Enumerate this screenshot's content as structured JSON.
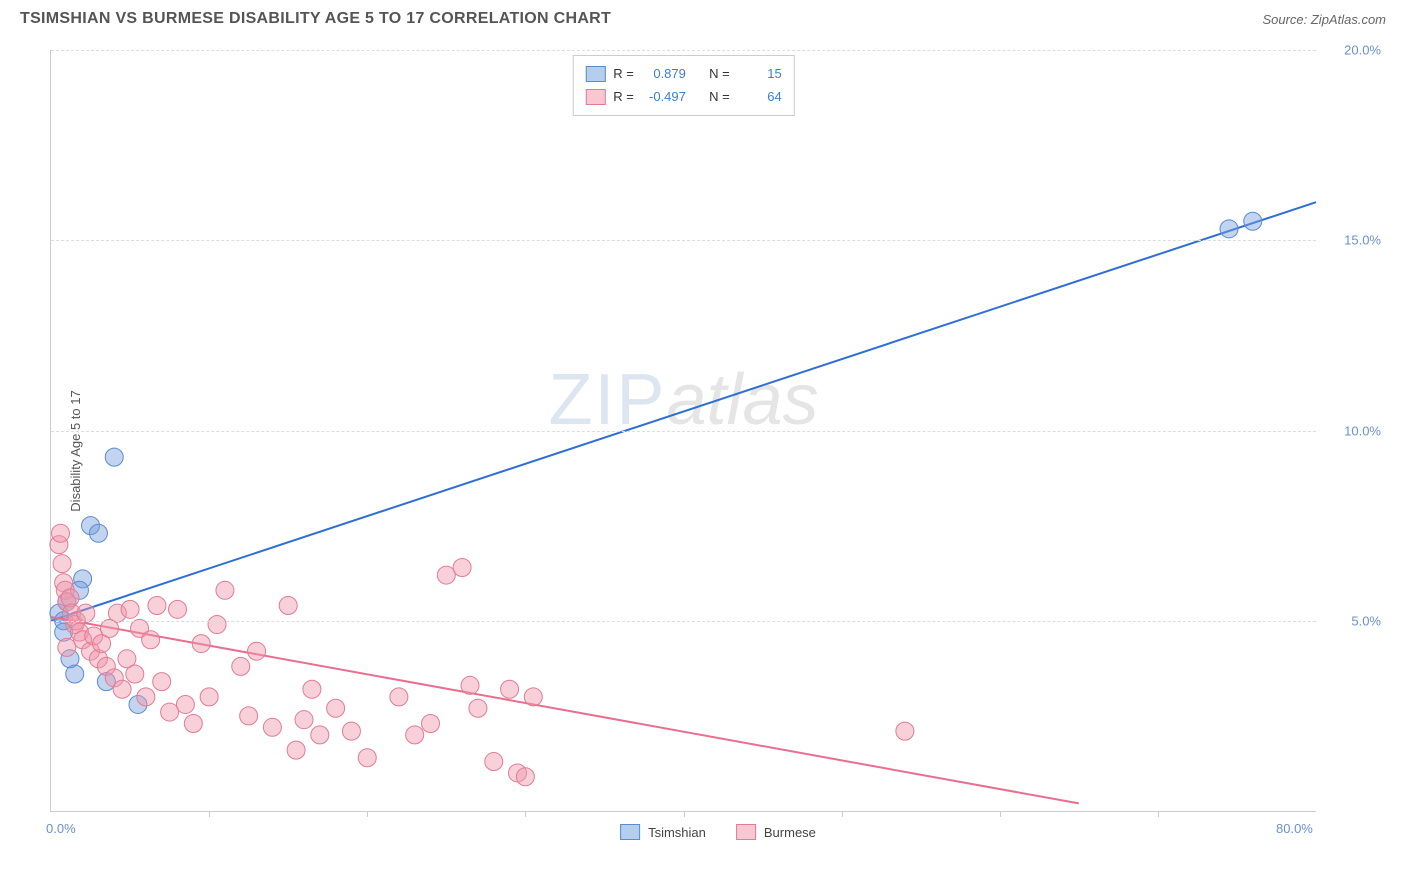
{
  "title": "TSIMSHIAN VS BURMESE DISABILITY AGE 5 TO 17 CORRELATION CHART",
  "source": "Source: ZipAtlas.com",
  "ylabel": "Disability Age 5 to 17",
  "watermark": {
    "part1": "ZIP",
    "part2": "atlas"
  },
  "chart": {
    "type": "scatter",
    "xlim": [
      0,
      80
    ],
    "ylim": [
      0,
      20
    ],
    "x_ticks": [
      0,
      10,
      20,
      30,
      40,
      50,
      60,
      70,
      80
    ],
    "x_tick_labels": {
      "0": "0.0%",
      "80": "80.0%"
    },
    "y_ticks": [
      5,
      10,
      15,
      20
    ],
    "y_tick_labels": [
      "5.0%",
      "10.0%",
      "15.0%",
      "20.0%"
    ],
    "grid_color": "#dddddd",
    "axis_color": "#cccccc",
    "tick_label_color": "#6b8fd4",
    "background_color": "#ffffff"
  },
  "series": [
    {
      "name": "Tsimshian",
      "marker_fill": "rgba(120,160,220,0.45)",
      "marker_stroke": "#5a8cd0",
      "line_color": "#2e6fd6",
      "line_width": 2,
      "marker_radius": 9,
      "R_label": "R =",
      "R": "0.879",
      "N_label": "N =",
      "N": "15",
      "swatch_fill": "rgba(150,185,230,0.7)",
      "swatch_border": "#5a8cd0",
      "trend": {
        "x1": 0,
        "y1": 5.0,
        "x2": 80,
        "y2": 16.0
      },
      "points": [
        [
          0.5,
          5.2
        ],
        [
          0.8,
          5.0
        ],
        [
          1.0,
          5.5
        ],
        [
          1.5,
          3.6
        ],
        [
          2.0,
          6.1
        ],
        [
          2.5,
          7.5
        ],
        [
          3.0,
          7.3
        ],
        [
          3.5,
          3.4
        ],
        [
          4.0,
          9.3
        ],
        [
          5.5,
          2.8
        ],
        [
          1.2,
          4.0
        ],
        [
          74.5,
          15.3
        ],
        [
          76.0,
          15.5
        ],
        [
          0.8,
          4.7
        ],
        [
          1.8,
          5.8
        ]
      ]
    },
    {
      "name": "Burmese",
      "marker_fill": "rgba(240,150,170,0.45)",
      "marker_stroke": "#e37b95",
      "line_color": "#e86f8d",
      "line_width": 2,
      "marker_radius": 9,
      "R_label": "R =",
      "R": "-0.497",
      "N_label": "N =",
      "N": "64",
      "swatch_fill": "rgba(245,175,190,0.7)",
      "swatch_border": "#e37b95",
      "trend": {
        "x1": 0,
        "y1": 5.1,
        "x2": 65,
        "y2": 0.2
      },
      "points": [
        [
          0.5,
          7.0
        ],
        [
          0.6,
          7.3
        ],
        [
          0.7,
          6.5
        ],
        [
          0.8,
          6.0
        ],
        [
          0.9,
          5.8
        ],
        [
          1.0,
          5.5
        ],
        [
          1.2,
          5.6
        ],
        [
          1.3,
          5.2
        ],
        [
          1.5,
          4.9
        ],
        [
          1.6,
          5.0
        ],
        [
          1.8,
          4.7
        ],
        [
          2.0,
          4.5
        ],
        [
          2.2,
          5.2
        ],
        [
          2.5,
          4.2
        ],
        [
          2.7,
          4.6
        ],
        [
          3.0,
          4.0
        ],
        [
          3.2,
          4.4
        ],
        [
          3.5,
          3.8
        ],
        [
          3.7,
          4.8
        ],
        [
          4.0,
          3.5
        ],
        [
          4.2,
          5.2
        ],
        [
          4.5,
          3.2
        ],
        [
          4.8,
          4.0
        ],
        [
          5.0,
          5.3
        ],
        [
          5.3,
          3.6
        ],
        [
          5.6,
          4.8
        ],
        [
          6.0,
          3.0
        ],
        [
          6.3,
          4.5
        ],
        [
          6.7,
          5.4
        ],
        [
          7.0,
          3.4
        ],
        [
          7.5,
          2.6
        ],
        [
          8.0,
          5.3
        ],
        [
          8.5,
          2.8
        ],
        [
          9.0,
          2.3
        ],
        [
          9.5,
          4.4
        ],
        [
          10.0,
          3.0
        ],
        [
          10.5,
          4.9
        ],
        [
          11.0,
          5.8
        ],
        [
          12.0,
          3.8
        ],
        [
          12.5,
          2.5
        ],
        [
          13.0,
          4.2
        ],
        [
          14.0,
          2.2
        ],
        [
          15.0,
          5.4
        ],
        [
          15.5,
          1.6
        ],
        [
          16.0,
          2.4
        ],
        [
          16.5,
          3.2
        ],
        [
          17.0,
          2.0
        ],
        [
          18.0,
          2.7
        ],
        [
          19.0,
          2.1
        ],
        [
          20.0,
          1.4
        ],
        [
          22.0,
          3.0
        ],
        [
          23.0,
          2.0
        ],
        [
          25.0,
          6.2
        ],
        [
          26.0,
          6.4
        ],
        [
          26.5,
          3.3
        ],
        [
          27.0,
          2.7
        ],
        [
          28.0,
          1.3
        ],
        [
          29.0,
          3.2
        ],
        [
          29.5,
          1.0
        ],
        [
          30.0,
          0.9
        ],
        [
          30.5,
          3.0
        ],
        [
          24.0,
          2.3
        ],
        [
          54.0,
          2.1
        ],
        [
          1.0,
          4.3
        ]
      ]
    }
  ],
  "legend_bottom": [
    {
      "label": "Tsimshian",
      "fill": "rgba(150,185,230,0.7)",
      "border": "#5a8cd0"
    },
    {
      "label": "Burmese",
      "fill": "rgba(245,175,190,0.7)",
      "border": "#e37b95"
    }
  ]
}
